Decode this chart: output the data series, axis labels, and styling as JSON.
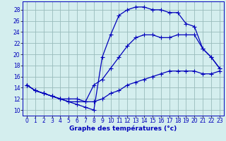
{
  "title": "Graphe des températures (°c)",
  "bg_color": "#d4eeee",
  "line_color": "#0000bb",
  "grid_color": "#99bbbb",
  "x_ticks": [
    0,
    1,
    2,
    3,
    4,
    5,
    6,
    7,
    8,
    9,
    10,
    11,
    12,
    13,
    14,
    15,
    16,
    17,
    18,
    19,
    20,
    21,
    22,
    23
  ],
  "y_ticks": [
    10,
    12,
    14,
    16,
    18,
    20,
    22,
    24,
    26,
    28
  ],
  "ylim": [
    9.0,
    29.5
  ],
  "xlim": [
    -0.5,
    23.5
  ],
  "line1_y": [
    14.5,
    13.5,
    13.0,
    12.5,
    12.0,
    11.5,
    11.0,
    10.5,
    10.0,
    19.5,
    23.5,
    27.0,
    28.0,
    28.5,
    28.5,
    28.0,
    28.0,
    27.5,
    27.5,
    25.5,
    25.0,
    21.0,
    19.5,
    17.5
  ],
  "line2_y": [
    14.5,
    13.5,
    13.0,
    12.5,
    12.0,
    11.5,
    11.5,
    11.5,
    14.5,
    15.5,
    17.5,
    19.5,
    21.5,
    23.0,
    23.5,
    23.5,
    23.0,
    23.0,
    23.5,
    23.5,
    23.5,
    21.0,
    19.5,
    17.5
  ],
  "line3_y": [
    14.5,
    13.5,
    13.0,
    12.5,
    12.0,
    12.0,
    12.0,
    11.5,
    11.5,
    12.0,
    13.0,
    13.5,
    14.5,
    15.0,
    15.5,
    16.0,
    16.5,
    17.0,
    17.0,
    17.0,
    17.0,
    16.5,
    16.5,
    17.0
  ],
  "xlabel_fontsize": 6.5,
  "tick_fontsize": 5.5,
  "marker_size": 2.0,
  "line_width": 0.9
}
